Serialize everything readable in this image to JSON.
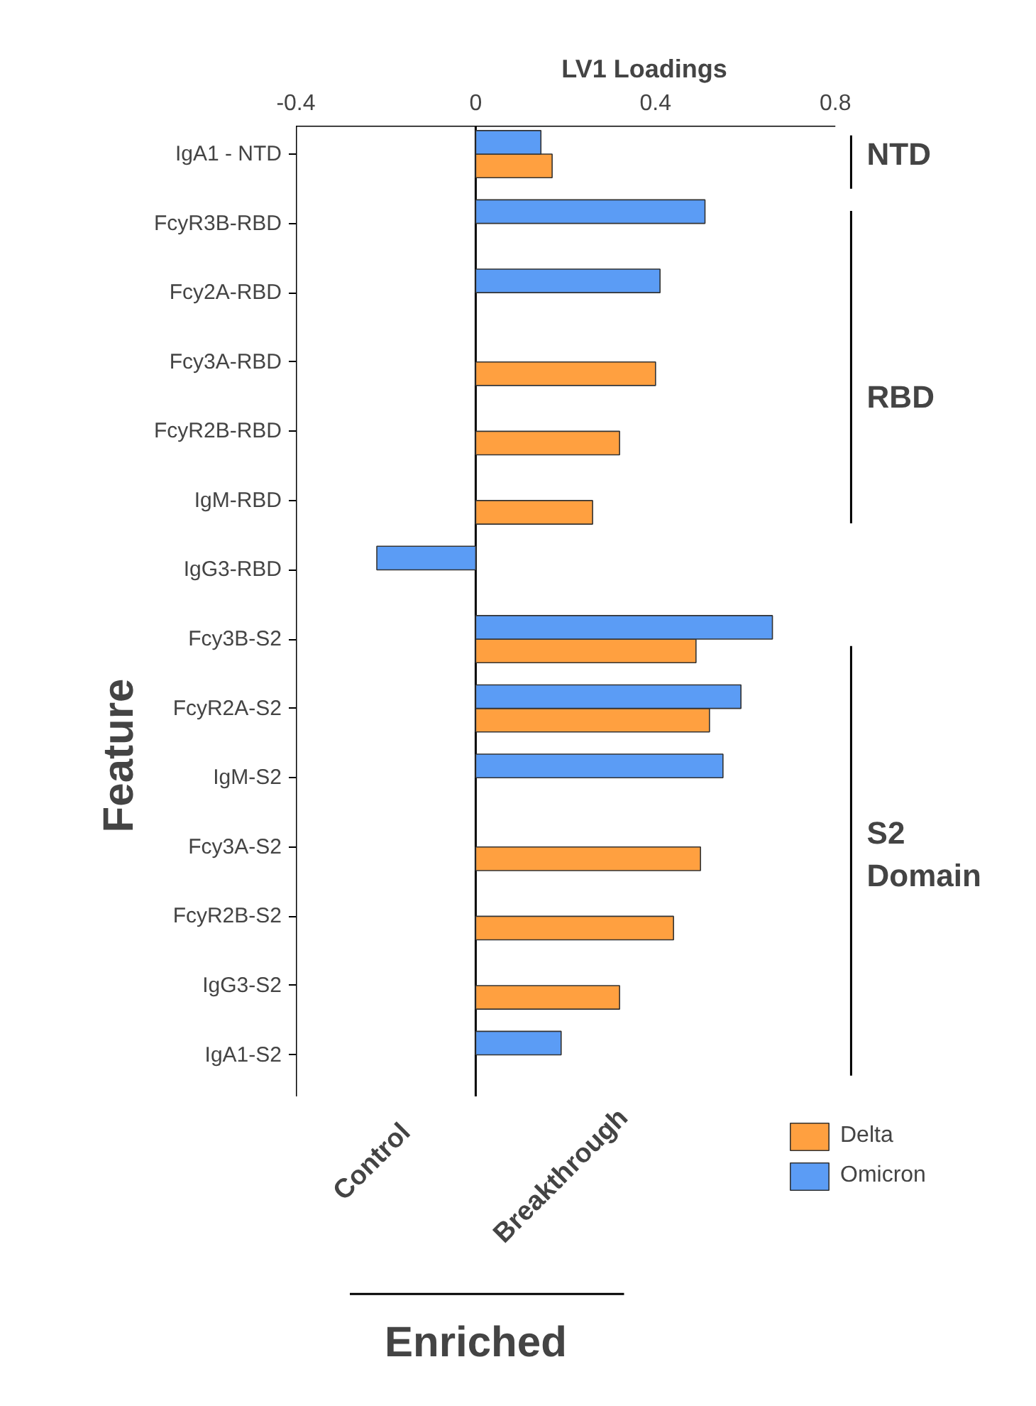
{
  "chart_data": {
    "type": "bar",
    "orientation": "horizontal",
    "xlabel": "LV1 Loadings",
    "ylabel": "Feature",
    "categories": [
      "IgA1 - NTD",
      "FcyR3B-RBD",
      "Fcy2A-RBD",
      "Fcy3A-RBD",
      "FcyR2B-RBD",
      "IgM-RBD",
      "IgG3-RBD",
      "Fcy3B-S2",
      "FcyR2A-S2",
      "IgM-S2",
      "Fcy3A-S2",
      "FcyR2B-S2",
      "IgG3-S2",
      "IgA1-S2"
    ],
    "series": [
      {
        "name": "Delta",
        "color": "#ffa040",
        "values": [
          0.17,
          null,
          null,
          0.4,
          0.32,
          0.26,
          null,
          0.49,
          0.52,
          null,
          0.5,
          0.44,
          0.32,
          null
        ]
      },
      {
        "name": "Omicron",
        "color": "#5b9cf5",
        "values": [
          0.145,
          0.51,
          0.41,
          null,
          null,
          null,
          -0.22,
          0.66,
          0.59,
          0.55,
          null,
          null,
          null,
          0.19
        ]
      }
    ],
    "xlim": [
      -0.4,
      0.8
    ],
    "xticks": [
      -0.4,
      0,
      0.4,
      0.8
    ],
    "ref_lines": [
      {
        "axis": "x",
        "value": 0
      }
    ],
    "legend": "bottom right",
    "grid": false,
    "annotations": [
      "NTD",
      "RBD",
      "S2 Domain",
      "Control",
      "Breakthrough",
      "Enriched"
    ]
  }
}
